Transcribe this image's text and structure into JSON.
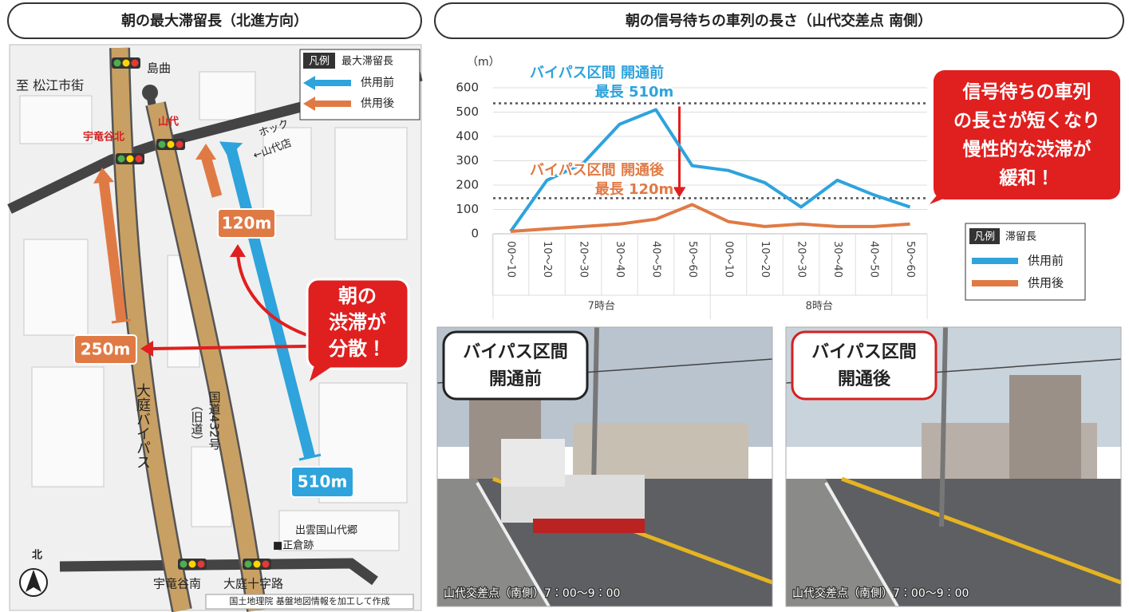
{
  "left_panel": {
    "title": "朝の最大滞留長（北進方向）",
    "map": {
      "to_city": "至 松江市街",
      "place_north": "島曲",
      "intersection_north": "宇竜谷北",
      "intersection_yamashiro": "山代",
      "shop_line1": "ホック",
      "shop_line2": "←山代店",
      "legend": {
        "title": "凡例",
        "label": "最大滞留長",
        "before": "供用前",
        "after": "供用後"
      },
      "queue_old_after": "120m",
      "queue_bypass_after": "250m",
      "queue_old_before": "510m",
      "callout": [
        "朝の",
        "渋滞が",
        "分散！"
      ],
      "bypass_name": "大庭バイパス",
      "old_road_name": "国道432号",
      "old_road_note": "（旧道）",
      "site": [
        "出雲国山代郷",
        "■正倉跡"
      ],
      "intersection_south": "宇竜谷南",
      "intersection_junction": "大庭十字路",
      "north": "北",
      "source": "国土地理院 基盤地図情報を加工して作成"
    }
  },
  "chart_data": {
    "type": "line",
    "title": "朝の信号待ちの車列の長さ（山代交差点 南側）",
    "y_label": "（m）",
    "categories": [
      "00～10",
      "10～20",
      "20～30",
      "30～40",
      "40～50",
      "50～60",
      "00～10",
      "10～20",
      "20～30",
      "30～40",
      "40～50",
      "50～60"
    ],
    "groups": [
      "7時台",
      "8時台"
    ],
    "series": [
      {
        "name": "供用前",
        "color": "#2ea3dc",
        "values": [
          10,
          220,
          290,
          450,
          510,
          280,
          260,
          210,
          110,
          220,
          160,
          110
        ]
      },
      {
        "name": "供用後",
        "color": "#e07a45",
        "values": [
          10,
          20,
          30,
          40,
          60,
          120,
          50,
          30,
          40,
          30,
          30,
          40
        ]
      }
    ],
    "ylim": [
      0,
      600
    ],
    "yticks": [
      0,
      100,
      200,
      300,
      400,
      500,
      600
    ],
    "annotations": [
      "バイパス区間 開通前",
      "最長 510m",
      "バイパス区間 開通後",
      "最長 120m"
    ],
    "legend_title": "凡例",
    "legend_label": "滞留長",
    "callout": [
      "信号待ちの車列",
      "の長さが短くなり",
      "慢性的な渋滞が",
      "緩和！"
    ]
  },
  "photos": [
    {
      "label": [
        "バイパス区間",
        "開通前"
      ],
      "caption": "山代交差点（南側）7：00～9：00"
    },
    {
      "label": [
        "バイパス区間",
        "開通後"
      ],
      "caption": "山代交差点（南側）7：00～9：00"
    }
  ]
}
